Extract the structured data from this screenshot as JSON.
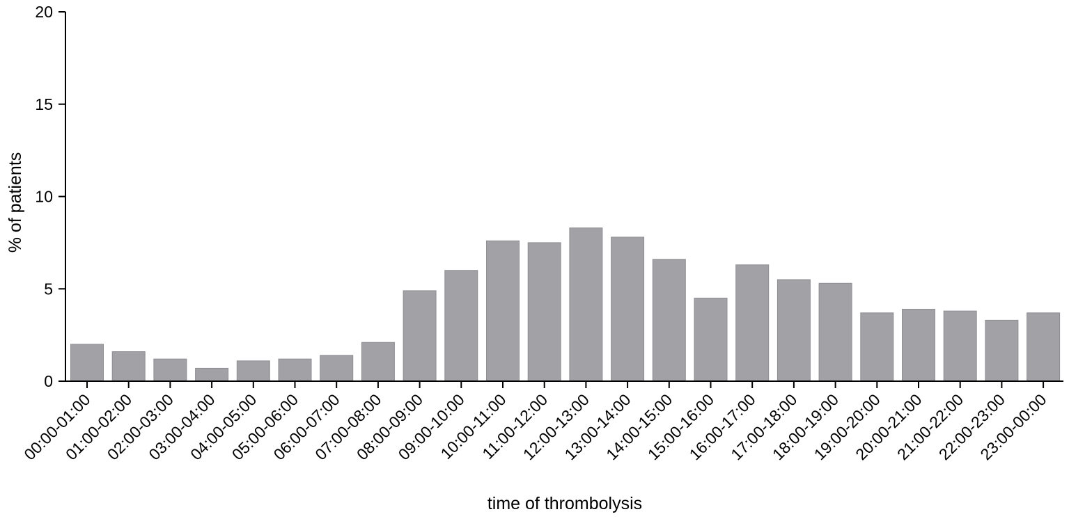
{
  "chart_data": {
    "type": "bar",
    "title": "",
    "xlabel": "time of thrombolysis",
    "ylabel": "% of patients",
    "ylim": [
      0,
      20
    ],
    "yticks": [
      0,
      5,
      10,
      15,
      20
    ],
    "grid": false,
    "bar_color": "#a2a1a6",
    "categories": [
      "00:00-01:00",
      "01:00-02:00",
      "02:00-03:00",
      "03:00-04:00",
      "04:00-05:00",
      "05:00-06:00",
      "06:00-07:00",
      "07:00-08:00",
      "08:00-09:00",
      "09:00-10:00",
      "10:00-11:00",
      "11:00-12:00",
      "12:00-13:00",
      "13:00-14:00",
      "14:00-15:00",
      "15:00-16:00",
      "16:00-17:00",
      "17:00-18:00",
      "18:00-19:00",
      "19:00-20:00",
      "20:00-21:00",
      "21:00-22:00",
      "22:00-23:00",
      "23:00-00:00"
    ],
    "values": [
      2.0,
      1.6,
      1.2,
      0.7,
      1.1,
      1.2,
      1.4,
      2.1,
      4.9,
      6.0,
      7.6,
      7.5,
      8.3,
      7.8,
      6.6,
      4.5,
      6.3,
      5.5,
      5.3,
      3.7,
      3.9,
      3.8,
      3.3,
      3.7
    ]
  }
}
